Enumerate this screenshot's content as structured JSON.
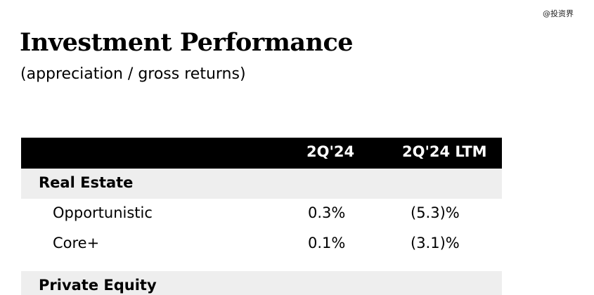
{
  "watermark": "@投资界",
  "title": "Investment Performance",
  "subtitle": "(appreciation  /  gross returns)",
  "table": {
    "headers": [
      "2Q'24",
      "2Q'24 LTM"
    ],
    "sections": [
      {
        "name": "Real Estate",
        "rows": [
          {
            "label": "Opportunistic",
            "q": "0.3%",
            "ltm": "(5.3)%"
          },
          {
            "label": "Core+",
            "q": "0.1%",
            "ltm": "(3.1)%"
          }
        ]
      },
      {
        "name": "Private Equity",
        "rows": []
      }
    ]
  }
}
